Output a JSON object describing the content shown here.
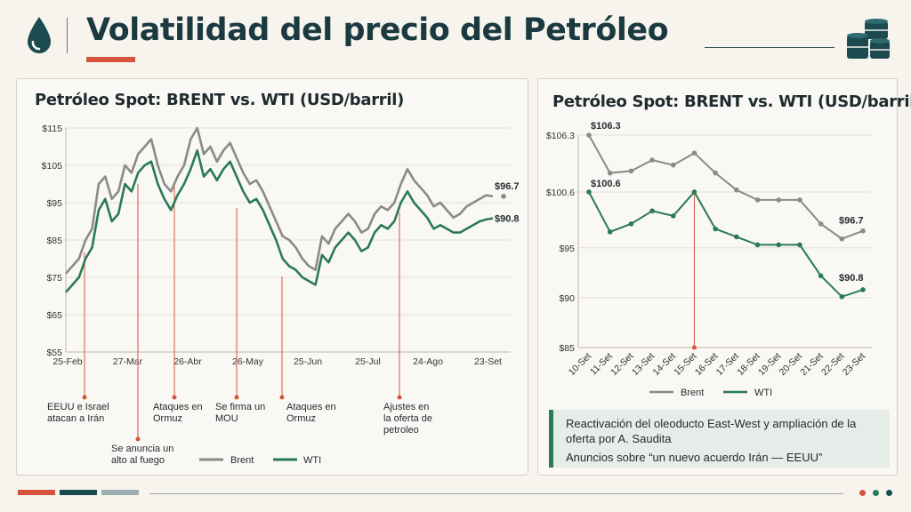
{
  "header": {
    "title": "Volatilidad del precio del Petróleo",
    "icon_left": "oil-drop-icon",
    "icon_right": "oil-barrels-icon"
  },
  "colors": {
    "brent": "#8a8a8a",
    "wti": "#2a7a57",
    "accent": "#d4553a",
    "dark": "#1b3a40"
  },
  "left_chart": {
    "title": "Petróleo Spot: BRENT vs. WTI (USD/barril)",
    "y_ticks": [
      "$115",
      "$105",
      "$95",
      "$85",
      "$75",
      "$65",
      "$55"
    ],
    "x_ticks": [
      "25-Feb",
      "27-Mar",
      "26-Abr",
      "26-May",
      "25-Jun",
      "25-Jul",
      "24-Ago",
      "23-Set"
    ],
    "end_label_brent": "$96.7",
    "end_label_wti": "$90.8",
    "events": {
      "e1": [
        "EEUU e Israel",
        "atacan a Irán"
      ],
      "e2": [
        "Se anuncia un",
        "alto al fuego"
      ],
      "e3": [
        "Ataques en",
        "Ormuz"
      ],
      "e4": [
        "Se firma un",
        "MOU"
      ],
      "e5": [
        "Ataques en",
        "Ormuz"
      ],
      "e6": [
        "Ajustes en",
        "la oferta de",
        "petroleo"
      ]
    },
    "legend": {
      "brent": "Brent",
      "wti": "WTI"
    }
  },
  "chart_data": [
    {
      "type": "line",
      "title": "Petróleo Spot: BRENT vs. WTI (USD/barril)",
      "x_ticks": [
        "25-Feb",
        "27-Mar",
        "26-Abr",
        "26-May",
        "25-Jun",
        "25-Jul",
        "24-Ago",
        "23-Set"
      ],
      "ylim": [
        55,
        115
      ],
      "series": [
        {
          "name": "Brent",
          "values": [
            76,
            78,
            80,
            85,
            88,
            100,
            102,
            96,
            98,
            105,
            103,
            108,
            110,
            112,
            105,
            100,
            98,
            102,
            105,
            112,
            115,
            108,
            110,
            106,
            109,
            111,
            107,
            103,
            100,
            101,
            98,
            94,
            90,
            86,
            85,
            83,
            80,
            78,
            77,
            86,
            84,
            88,
            90,
            92,
            90,
            87,
            88,
            92,
            94,
            93,
            95,
            100,
            104,
            101,
            99,
            97,
            94,
            95,
            93,
            91,
            92,
            94,
            95,
            96,
            97,
            96.7
          ],
          "end_label": 96.7
        },
        {
          "name": "WTI",
          "values": [
            71,
            73,
            75,
            80,
            83,
            93,
            96,
            90,
            92,
            100,
            98,
            103,
            105,
            106,
            100,
            96,
            93,
            97,
            100,
            104,
            109,
            102,
            104,
            101,
            104,
            106,
            102,
            98,
            95,
            96,
            93,
            89,
            85,
            80,
            78,
            77,
            75,
            74,
            73,
            81,
            79,
            83,
            85,
            87,
            85,
            82,
            83,
            87,
            89,
            88,
            90,
            95,
            98,
            95,
            93,
            91,
            88,
            89,
            88,
            87,
            87,
            88,
            89,
            90,
            90.5,
            90.8
          ],
          "end_label": 90.8
        }
      ],
      "annotations": [
        {
          "at": "25-Feb",
          "text": "EEUU e Israel atacan a Irán"
        },
        {
          "at": "27-Mar",
          "text": "Se anuncia un alto al fuego"
        },
        {
          "at": "26-Abr",
          "text": "Ataques en Ormuz"
        },
        {
          "at": "26-May",
          "text": "Se firma un MOU"
        },
        {
          "at": "25-Jun",
          "text": "Ataques en Ormuz"
        },
        {
          "at": "24-Ago",
          "text": "Ajustes en la oferta de petroleo"
        }
      ],
      "legend": "bottom-center"
    },
    {
      "type": "line",
      "title": "Petróleo Spot: BRENT vs. WTI (USD/barril)",
      "categories": [
        "10-Set",
        "11-Set",
        "12-Set",
        "13-Set",
        "14-Set",
        "15-Set",
        "16-Set",
        "17-Set",
        "18-Set",
        "19-Set",
        "20-Set",
        "21-Set",
        "22-Set",
        "23-Set"
      ],
      "y_ticks": [
        "$106.3",
        "$100.6",
        "$95",
        "$90",
        "$85"
      ],
      "ylim": [
        85,
        106.3
      ],
      "series": [
        {
          "name": "Brent",
          "values": [
            106.3,
            102.5,
            102.7,
            103.8,
            103.3,
            104.5,
            102.5,
            100.8,
            99.8,
            99.8,
            99.8,
            97.4,
            95.9,
            96.7
          ]
        },
        {
          "name": "WTI",
          "values": [
            100.6,
            96.6,
            97.4,
            98.7,
            98.2,
            100.6,
            96.9,
            96.1,
            95.3,
            95.3,
            95.3,
            92.2,
            90.1,
            90.8
          ]
        }
      ],
      "data_labels": {
        "brent_first": "$106.3",
        "wti_first": "$100.6",
        "brent_last": "$96.7",
        "wti_last": "$90.8"
      },
      "annotations": [
        {
          "at": "15-Set"
        }
      ],
      "legend": "bottom-center"
    }
  ],
  "right_chart": {
    "title": "Petróleo Spot: BRENT vs. WTI (USD/barril)",
    "y_ticks": [
      "$106.3",
      "$100.6",
      "$95",
      "$90",
      "$85"
    ],
    "labels": {
      "brent_first": "$106.3",
      "wti_first": "$100.6",
      "brent_last": "$96.7",
      "wti_last": "$90.8"
    },
    "legend": {
      "brent": "Brent",
      "wti": "WTI"
    }
  },
  "callout": {
    "line1": "Reactivación del oleoducto East-West y ampliación de la oferta por A. Saudita",
    "line2": "Anuncios sobre “un nuevo acuerdo Irán — EEUU”"
  },
  "footer": {
    "segments": [
      "#d4553a",
      "#1b4a4f",
      "#9aaeb0"
    ],
    "dots": [
      "#d4553a",
      "#2a7a57",
      "#1b4a4f"
    ]
  }
}
